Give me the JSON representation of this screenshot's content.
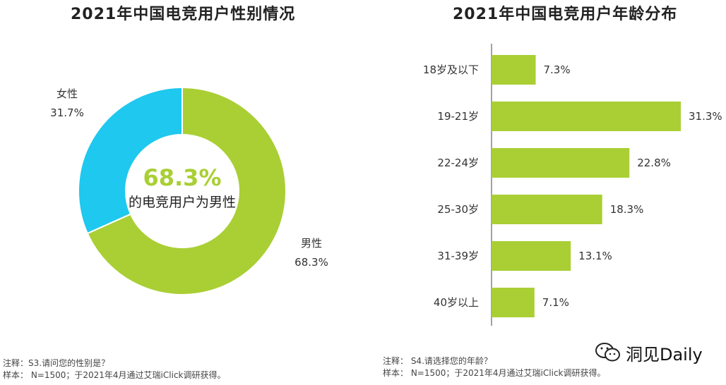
{
  "charts_titles": {
    "gender": "2021年中国电竞用户性别情况",
    "age": "2021年中国电竞用户年龄分布"
  },
  "donut_center": {
    "value": "68.3%",
    "caption": "的电竞用户为男性"
  },
  "chart_data": [
    {
      "type": "pie",
      "title": "2021年中国电竞用户性别情况",
      "categories": [
        "女性",
        "男性"
      ],
      "values": [
        31.7,
        68.3
      ],
      "value_labels": [
        "31.7%",
        "68.3%"
      ],
      "colors": [
        "#1ec8ee",
        "#a9cf34"
      ],
      "hole": true
    },
    {
      "type": "bar",
      "orientation": "horizontal",
      "title": "2021年中国电竞用户年龄分布",
      "categories": [
        "18岁及以下",
        "19-21岁",
        "22-24岁",
        "25-30岁",
        "31-39岁",
        "40岁以上"
      ],
      "values": [
        7.3,
        31.3,
        22.8,
        18.3,
        13.1,
        7.1
      ],
      "value_labels": [
        "7.3%",
        "31.3%",
        "22.8%",
        "18.3%",
        "13.1%",
        "7.1%"
      ],
      "xlim": [
        0,
        31.3
      ],
      "color": "#a9cf34"
    }
  ],
  "notes": {
    "left_line1": "注释：S3.请问您的性别是？",
    "left_line2": "样本：  N=1500；于2021年4月通过艾瑞iClick调研获得。",
    "right_line1": "注释：  S4.请选择您的年龄？",
    "right_line2": "样本：  N=1500；于2021年4月通过艾瑞iClick调研获得。"
  },
  "watermark": {
    "text": "洞见Daily",
    "icon": "wechat-icon"
  }
}
